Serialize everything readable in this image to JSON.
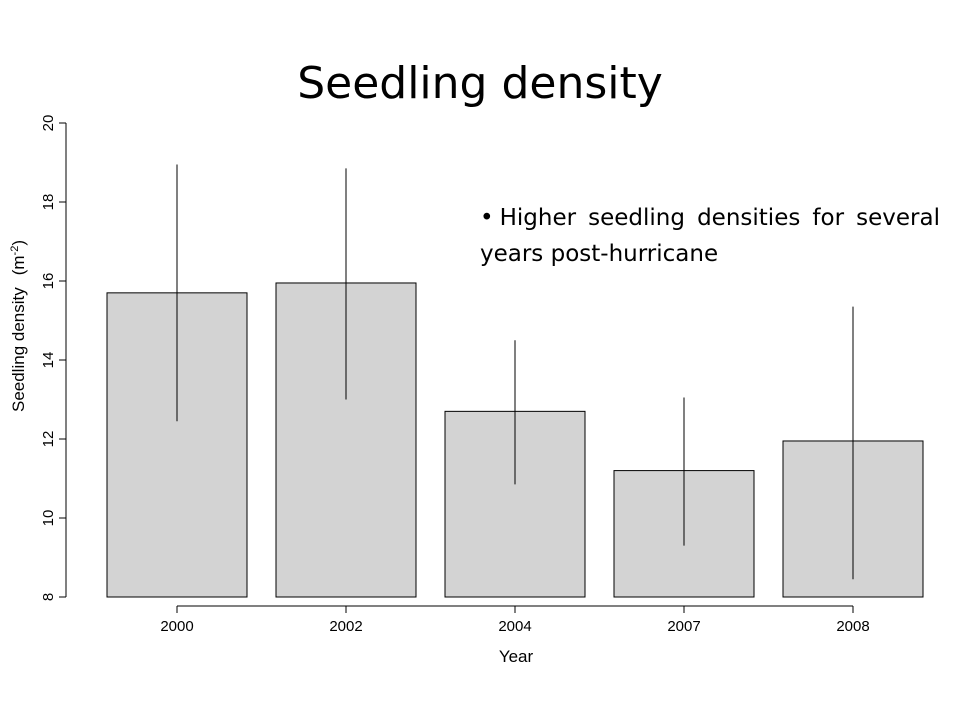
{
  "slide": {
    "title": "Seedling density",
    "bullet": "Higher seedling densities for several years post-hurricane"
  },
  "chart_data": {
    "type": "bar",
    "title": "",
    "xlabel": "Year",
    "ylabel": "Seedling density",
    "ylabel_unit": "(m",
    "ylabel_unit_sup": "-2",
    "ylabel_unit_close": ")",
    "categories": [
      "2000",
      "2002",
      "2004",
      "2007",
      "2008"
    ],
    "values": [
      15.7,
      15.95,
      12.7,
      11.2,
      11.95
    ],
    "error_low": [
      12.45,
      13.0,
      10.85,
      9.3,
      8.45
    ],
    "error_high": [
      18.95,
      18.85,
      14.5,
      13.05,
      15.35
    ],
    "ylim": [
      8,
      20
    ],
    "yticks": [
      8,
      10,
      12,
      14,
      16,
      18,
      20
    ],
    "bar_color": "#d3d3d3",
    "grid": false,
    "legend": "none"
  }
}
